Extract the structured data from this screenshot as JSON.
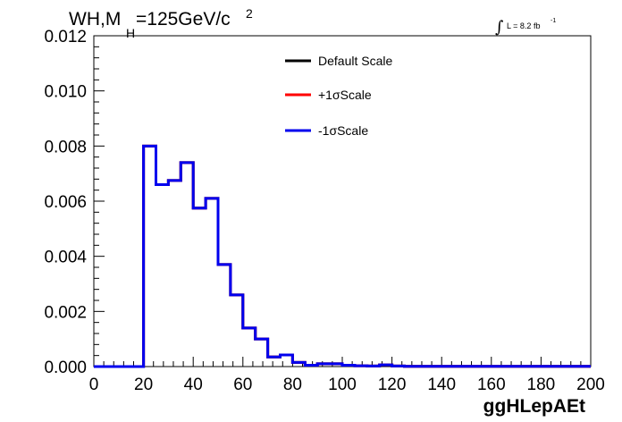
{
  "chart_data": {
    "type": "line",
    "title_parts": {
      "main": "WH,M",
      "sub": "H",
      "rest": "=125GeV/c",
      "sup": "2"
    },
    "lumi": {
      "integral": "∫",
      "text": "L = 8.2 fb",
      "sup": "-1"
    },
    "xlabel": "ggHLepAEt",
    "ylabel": "",
    "xlim": [
      0,
      200
    ],
    "ylim": [
      0,
      0.012
    ],
    "x_ticks": [
      "0",
      "20",
      "40",
      "60",
      "80",
      "100",
      "120",
      "140",
      "160",
      "180",
      "200"
    ],
    "y_ticks": [
      "0.000",
      "0.002",
      "0.004",
      "0.006",
      "0.008",
      "0.010",
      "0.012"
    ],
    "bin_width": 5,
    "bin_edges_start": 0,
    "series": [
      {
        "name": "Default Scale",
        "color": "#000000",
        "values": [
          0,
          0,
          0,
          0,
          0.008,
          0.0066,
          0.00675,
          0.0074,
          0.00575,
          0.0061,
          0.0037,
          0.0026,
          0.0014,
          0.001,
          0.00035,
          0.00042,
          0.00015,
          5e-05,
          0.0001,
          0.0001,
          5e-05,
          3e-05,
          2e-05,
          6e-05,
          2e-05,
          1e-05,
          1e-05,
          1e-05,
          1e-05,
          1e-05,
          1e-05,
          1e-05,
          1e-05,
          1e-05,
          1e-05,
          1e-05,
          1e-05,
          1e-05,
          1e-05,
          1e-05
        ]
      },
      {
        "name": "+1σScale",
        "color": "#ff0000",
        "values": [
          0,
          0,
          0,
          0,
          0.008,
          0.0066,
          0.00675,
          0.0074,
          0.00575,
          0.0061,
          0.0037,
          0.0026,
          0.0014,
          0.001,
          0.00035,
          0.00042,
          0.00015,
          5e-05,
          0.0001,
          0.0001,
          5e-05,
          3e-05,
          2e-05,
          6e-05,
          2e-05,
          1e-05,
          1e-05,
          1e-05,
          1e-05,
          1e-05,
          1e-05,
          1e-05,
          1e-05,
          1e-05,
          1e-05,
          1e-05,
          1e-05,
          1e-05,
          1e-05,
          1e-05
        ]
      },
      {
        "name": "-1σScale",
        "color": "#0000ee",
        "values": [
          0,
          0,
          0,
          0,
          0.008,
          0.0066,
          0.00675,
          0.0074,
          0.00575,
          0.0061,
          0.0037,
          0.0026,
          0.0014,
          0.001,
          0.00035,
          0.00042,
          0.00015,
          5e-05,
          0.0001,
          0.0001,
          5e-05,
          3e-05,
          2e-05,
          6e-05,
          2e-05,
          1e-05,
          1e-05,
          1e-05,
          1e-05,
          1e-05,
          1e-05,
          1e-05,
          1e-05,
          1e-05,
          1e-05,
          1e-05,
          1e-05,
          1e-05,
          1e-05,
          1e-05
        ]
      }
    ],
    "legend_position": "top-center",
    "grid": false
  }
}
